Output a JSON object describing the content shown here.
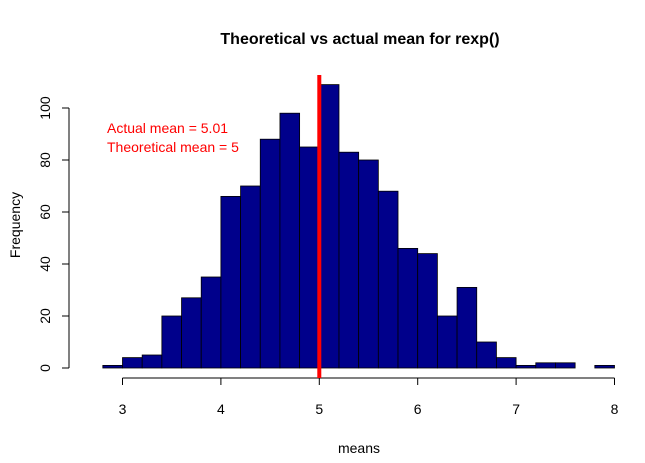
{
  "chart_data": {
    "type": "histogram",
    "title": "Theoretical vs actual mean for rexp()",
    "xlabel": "means",
    "ylabel": "Frequency",
    "xlim": [
      2.8,
      8.0
    ],
    "ylim": [
      0,
      110
    ],
    "x_ticks": [
      3,
      4,
      5,
      6,
      7,
      8
    ],
    "y_ticks": [
      0,
      20,
      40,
      60,
      80,
      100
    ],
    "bin_width": 0.2,
    "bin_starts": [
      2.8,
      3.0,
      3.2,
      3.4,
      3.6,
      3.8,
      4.0,
      4.2,
      4.4,
      4.6,
      4.8,
      5.0,
      5.2,
      5.4,
      5.6,
      5.8,
      6.0,
      6.2,
      6.4,
      6.6,
      6.8,
      7.0,
      7.2,
      7.4,
      7.6,
      7.8
    ],
    "counts": [
      1,
      4,
      5,
      20,
      27,
      35,
      66,
      70,
      88,
      98,
      85,
      109,
      83,
      80,
      68,
      46,
      44,
      20,
      31,
      10,
      4,
      1,
      2,
      2,
      0,
      1
    ],
    "bar_color": "#00008B",
    "mean_line": {
      "x": 5.0,
      "color": "#FF0000"
    },
    "annotations": [
      {
        "text": "Actual mean =  5.01",
        "color": "#FF0000"
      },
      {
        "text": "Theoretical mean = 5",
        "color": "#FF0000"
      }
    ]
  }
}
